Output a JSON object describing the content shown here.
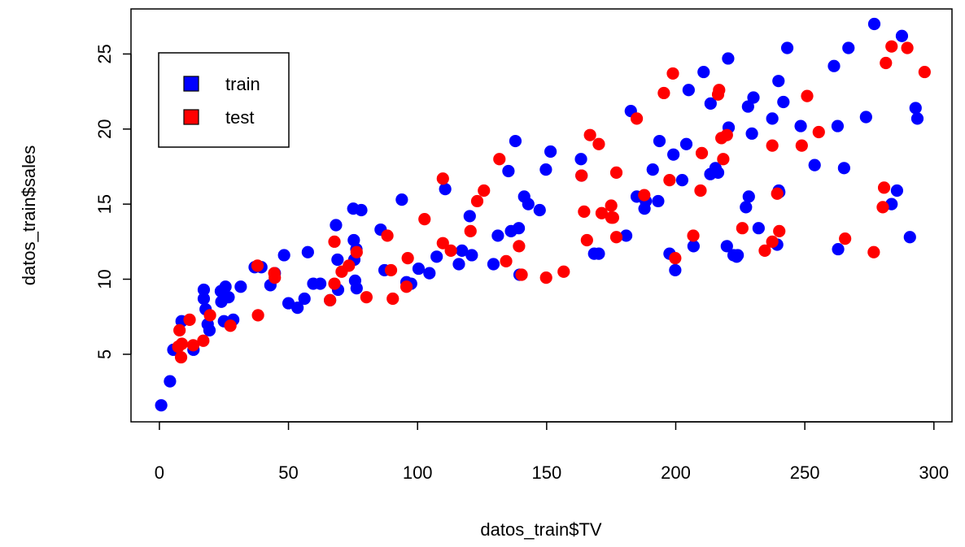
{
  "chart_data": {
    "type": "scatter",
    "xlabel": "datos_train$TV",
    "ylabel": "datos_train$sales",
    "xlim": [
      -11,
      307
    ],
    "ylim": [
      0.5,
      28.0
    ],
    "xticks": [
      0,
      50,
      100,
      150,
      200,
      250,
      300
    ],
    "yticks": [
      5,
      10,
      15,
      20,
      25
    ],
    "grid": false,
    "legend_position": "top-left",
    "legend": [
      {
        "label": "train",
        "color": "#0000ff"
      },
      {
        "label": "test",
        "color": "#ff0000"
      }
    ],
    "series": [
      {
        "name": "train",
        "color": "#0000ff",
        "points": [
          [
            0.7,
            1.6
          ],
          [
            4.1,
            3.2
          ],
          [
            5.4,
            5.3
          ],
          [
            8.6,
            7.2
          ],
          [
            13.2,
            5.3
          ],
          [
            17.2,
            9.3
          ],
          [
            17.2,
            8.7
          ],
          [
            17.9,
            8.0
          ],
          [
            18.7,
            7.0
          ],
          [
            19.4,
            6.6
          ],
          [
            23.8,
            9.2
          ],
          [
            24.0,
            8.5
          ],
          [
            25.0,
            7.2
          ],
          [
            25.6,
            9.5
          ],
          [
            26.8,
            8.8
          ],
          [
            28.6,
            7.3
          ],
          [
            31.5,
            9.5
          ],
          [
            36.9,
            10.8
          ],
          [
            39.5,
            10.8
          ],
          [
            43.0,
            9.6
          ],
          [
            44.7,
            10.4
          ],
          [
            48.3,
            11.6
          ],
          [
            50.0,
            8.4
          ],
          [
            53.5,
            8.1
          ],
          [
            56.2,
            8.7
          ],
          [
            57.5,
            11.8
          ],
          [
            59.6,
            9.7
          ],
          [
            62.3,
            9.7
          ],
          [
            66.1,
            8.6
          ],
          [
            68.4,
            13.6
          ],
          [
            69.0,
            11.3
          ],
          [
            69.2,
            9.3
          ],
          [
            75.1,
            14.7
          ],
          [
            75.3,
            12.6
          ],
          [
            75.5,
            11.3
          ],
          [
            76.3,
            12.0
          ],
          [
            76.4,
            9.4
          ],
          [
            78.2,
            14.6
          ],
          [
            75.8,
            9.9
          ],
          [
            85.7,
            13.3
          ],
          [
            87.2,
            10.6
          ],
          [
            93.9,
            15.3
          ],
          [
            95.7,
            9.8
          ],
          [
            97.5,
            9.7
          ],
          [
            100.4,
            10.7
          ],
          [
            104.6,
            10.4
          ],
          [
            107.4,
            11.5
          ],
          [
            110.7,
            16.0
          ],
          [
            116.0,
            11.0
          ],
          [
            117.2,
            11.9
          ],
          [
            120.2,
            14.2
          ],
          [
            121.0,
            11.6
          ],
          [
            131.1,
            12.9
          ],
          [
            129.4,
            11.0
          ],
          [
            135.2,
            17.2
          ],
          [
            136.2,
            13.2
          ],
          [
            137.9,
            19.2
          ],
          [
            139.2,
            13.4
          ],
          [
            139.5,
            10.3
          ],
          [
            141.3,
            15.5
          ],
          [
            142.9,
            15.0
          ],
          [
            147.3,
            14.6
          ],
          [
            149.7,
            17.3
          ],
          [
            151.5,
            18.5
          ],
          [
            163.3,
            18.0
          ],
          [
            163.5,
            16.9
          ],
          [
            168.4,
            11.7
          ],
          [
            170.2,
            11.7
          ],
          [
            182.6,
            21.2
          ],
          [
            180.8,
            12.9
          ],
          [
            184.9,
            15.5
          ],
          [
            187.9,
            14.7
          ],
          [
            188.4,
            15.2
          ],
          [
            191.1,
            17.3
          ],
          [
            193.2,
            15.2
          ],
          [
            193.7,
            19.2
          ],
          [
            197.6,
            11.7
          ],
          [
            199.1,
            18.3
          ],
          [
            199.8,
            10.6
          ],
          [
            202.5,
            16.6
          ],
          [
            204.1,
            19.0
          ],
          [
            205.0,
            22.6
          ],
          [
            206.9,
            12.2
          ],
          [
            210.8,
            23.8
          ],
          [
            213.4,
            17.0
          ],
          [
            213.5,
            21.7
          ],
          [
            215.4,
            17.4
          ],
          [
            216.4,
            17.1
          ],
          [
            219.8,
            12.2
          ],
          [
            220.3,
            24.7
          ],
          [
            220.5,
            20.1
          ],
          [
            222.4,
            11.6
          ],
          [
            223.6,
            11.5
          ],
          [
            224.0,
            11.6
          ],
          [
            227.2,
            14.8
          ],
          [
            228.0,
            21.5
          ],
          [
            228.3,
            15.5
          ],
          [
            229.5,
            19.7
          ],
          [
            230.1,
            22.1
          ],
          [
            232.1,
            13.4
          ],
          [
            237.4,
            20.7
          ],
          [
            239.8,
            23.2
          ],
          [
            239.9,
            15.9
          ],
          [
            239.3,
            12.3
          ],
          [
            240.1,
            15.8
          ],
          [
            241.7,
            21.8
          ],
          [
            243.2,
            25.4
          ],
          [
            248.4,
            20.2
          ],
          [
            253.8,
            17.6
          ],
          [
            261.3,
            24.2
          ],
          [
            262.7,
            20.2
          ],
          [
            262.9,
            12.0
          ],
          [
            265.2,
            17.4
          ],
          [
            266.9,
            25.4
          ],
          [
            273.7,
            20.8
          ],
          [
            276.9,
            27.0
          ],
          [
            283.6,
            15.0
          ],
          [
            285.7,
            15.9
          ],
          [
            287.6,
            26.2
          ],
          [
            290.7,
            12.8
          ],
          [
            293.6,
            20.7
          ],
          [
            292.9,
            21.4
          ]
        ]
      },
      {
        "name": "test",
        "color": "#ff0000",
        "points": [
          [
            7.3,
            5.5
          ],
          [
            7.8,
            6.6
          ],
          [
            8.4,
            4.8
          ],
          [
            8.7,
            5.7
          ],
          [
            11.7,
            7.3
          ],
          [
            13.1,
            5.6
          ],
          [
            17.0,
            5.9
          ],
          [
            19.6,
            7.6
          ],
          [
            27.5,
            6.9
          ],
          [
            38.2,
            7.6
          ],
          [
            38.0,
            10.9
          ],
          [
            44.5,
            10.4
          ],
          [
            44.7,
            10.1
          ],
          [
            66.1,
            8.6
          ],
          [
            67.8,
            12.5
          ],
          [
            67.8,
            9.7
          ],
          [
            70.6,
            10.5
          ],
          [
            73.4,
            10.9
          ],
          [
            76.4,
            11.8
          ],
          [
            80.2,
            8.8
          ],
          [
            88.3,
            12.9
          ],
          [
            89.7,
            10.6
          ],
          [
            90.4,
            8.7
          ],
          [
            96.2,
            11.4
          ],
          [
            95.7,
            9.5
          ],
          [
            102.7,
            14.0
          ],
          [
            109.8,
            12.4
          ],
          [
            109.8,
            16.7
          ],
          [
            112.9,
            11.9
          ],
          [
            120.5,
            13.2
          ],
          [
            123.1,
            15.2
          ],
          [
            125.7,
            15.9
          ],
          [
            131.7,
            18.0
          ],
          [
            134.3,
            11.2
          ],
          [
            139.3,
            12.2
          ],
          [
            140.3,
            10.3
          ],
          [
            149.8,
            10.1
          ],
          [
            156.6,
            10.5
          ],
          [
            163.5,
            16.9
          ],
          [
            164.5,
            14.5
          ],
          [
            165.6,
            12.6
          ],
          [
            166.8,
            19.6
          ],
          [
            170.2,
            19.0
          ],
          [
            171.3,
            14.4
          ],
          [
            175.0,
            14.9
          ],
          [
            175.1,
            14.1
          ],
          [
            175.7,
            14.1
          ],
          [
            177.0,
            12.8
          ],
          [
            177.0,
            17.1
          ],
          [
            184.9,
            20.7
          ],
          [
            187.8,
            15.6
          ],
          [
            195.4,
            22.4
          ],
          [
            197.6,
            16.6
          ],
          [
            198.9,
            23.7
          ],
          [
            199.8,
            11.4
          ],
          [
            206.8,
            12.9
          ],
          [
            209.6,
            15.9
          ],
          [
            210.1,
            18.4
          ],
          [
            216.8,
            22.6
          ],
          [
            216.4,
            22.3
          ],
          [
            217.7,
            19.4
          ],
          [
            218.4,
            18.0
          ],
          [
            219.8,
            19.6
          ],
          [
            225.8,
            13.4
          ],
          [
            234.5,
            11.9
          ],
          [
            237.4,
            12.5
          ],
          [
            237.4,
            18.9
          ],
          [
            239.3,
            15.7
          ],
          [
            240.1,
            13.2
          ],
          [
            248.8,
            18.9
          ],
          [
            250.9,
            22.2
          ],
          [
            255.4,
            19.8
          ],
          [
            265.6,
            12.7
          ],
          [
            276.7,
            11.8
          ],
          [
            280.2,
            14.8
          ],
          [
            280.7,
            16.1
          ],
          [
            281.4,
            24.4
          ],
          [
            283.6,
            25.5
          ],
          [
            289.7,
            25.4
          ],
          [
            296.4,
            23.8
          ]
        ]
      }
    ]
  }
}
